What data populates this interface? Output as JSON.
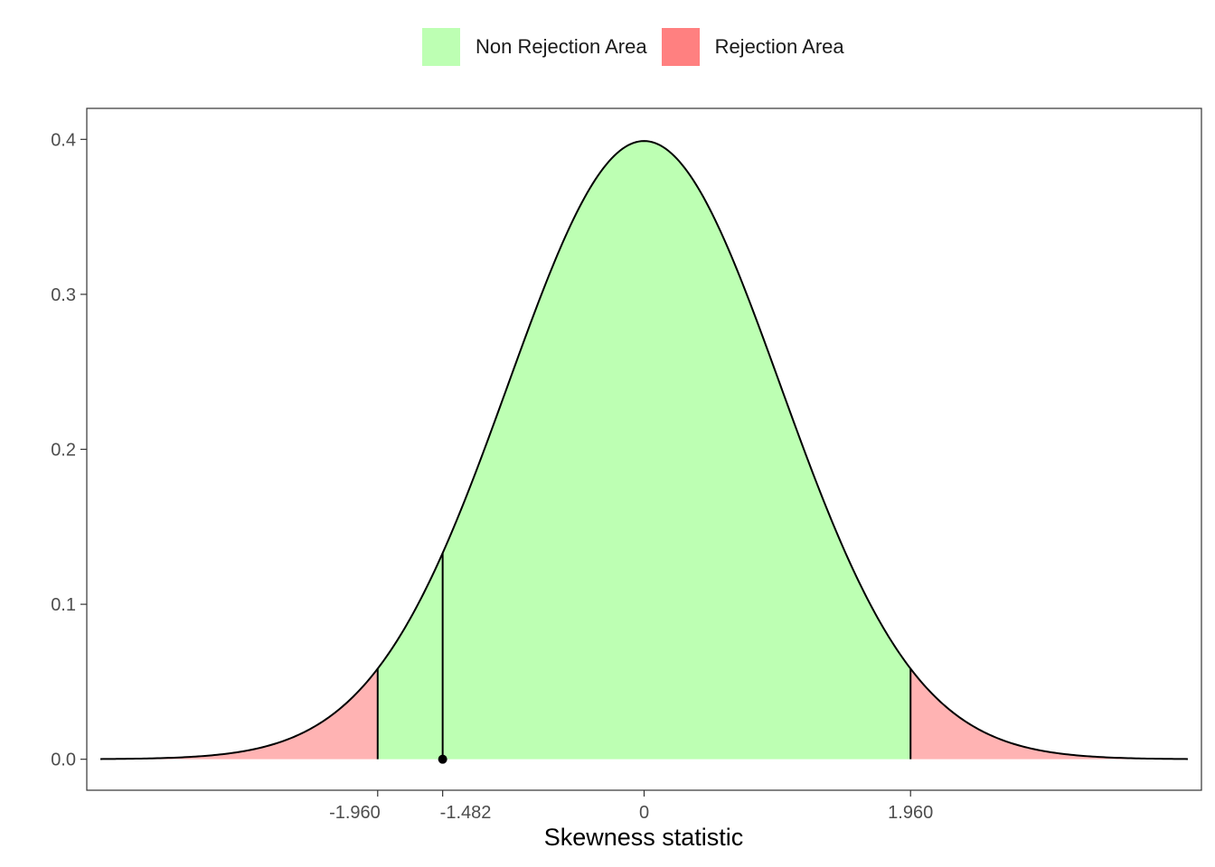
{
  "chart_data": {
    "type": "area",
    "title": "",
    "xlabel": "Skewness statistic",
    "ylabel": "",
    "xlim": [
      -4.1,
      4.1
    ],
    "ylim": [
      -0.02,
      0.42
    ],
    "grid": false,
    "legend_position": "top",
    "y_ticks": [
      0.0,
      0.1,
      0.2,
      0.3,
      0.4
    ],
    "y_tick_labels": [
      "0.0",
      "0.1",
      "0.2",
      "0.3",
      "0.4"
    ],
    "x_ticks": [
      -1.96,
      -1.482,
      0,
      1.96
    ],
    "x_tick_labels": [
      "-1.960",
      "-1.482",
      "0",
      "1.960"
    ],
    "curve": "standard normal density, x from -4 to 4",
    "critical_values": [
      -1.96,
      1.96
    ],
    "statistic": -1.482,
    "series": [
      {
        "name": "Non Rejection Area",
        "color": "#bdffb3",
        "x_range": [
          -1.96,
          1.96
        ]
      },
      {
        "name": "Rejection Area",
        "color": "#ff8080",
        "x_range": [
          [
            -4,
            -1.96
          ],
          [
            1.96,
            4
          ]
        ]
      }
    ]
  },
  "legend": {
    "items": [
      {
        "label": "Non Rejection Area",
        "color": "#bdffb3"
      },
      {
        "label": "Rejection Area",
        "color": "#ff8080"
      }
    ]
  }
}
